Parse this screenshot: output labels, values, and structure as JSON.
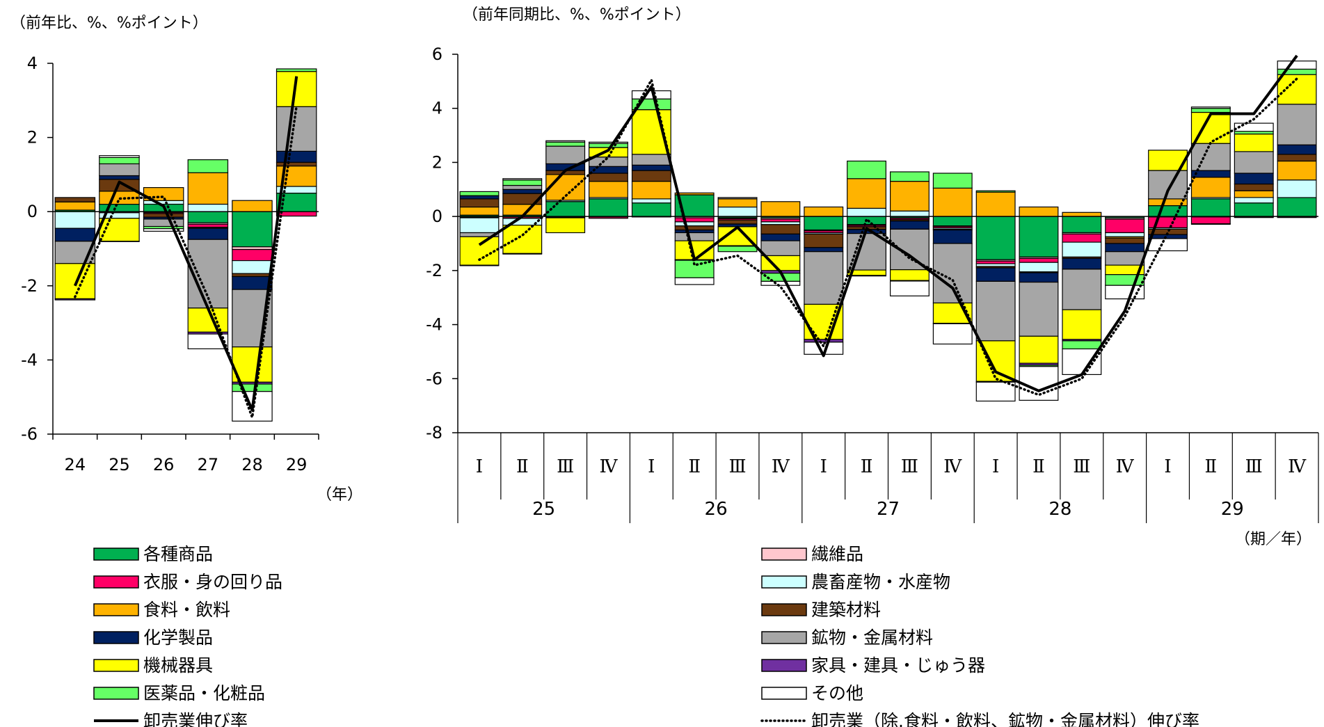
{
  "series_meta": [
    {
      "key": "kakushu",
      "name": "各種商品",
      "color": "#00B050"
    },
    {
      "key": "seni",
      "name": "繊維品",
      "color": "#FFC7CE"
    },
    {
      "key": "ifuku",
      "name": "衣服・身の回り品",
      "color": "#FF0066"
    },
    {
      "key": "nochiku",
      "name": "農畜産物・水産物",
      "color": "#CCFFFF"
    },
    {
      "key": "shokuryo",
      "name": "食料・飲料",
      "color": "#FFB300"
    },
    {
      "key": "kenchiku",
      "name": "建築材料",
      "color": "#6B3A0F"
    },
    {
      "key": "kagaku",
      "name": "化学製品",
      "color": "#002060"
    },
    {
      "key": "kozai",
      "name": "鉱物・金属材料",
      "color": "#A6A6A6"
    },
    {
      "key": "kikai",
      "name": "機械器具",
      "color": "#FFFF00"
    },
    {
      "key": "kagu",
      "name": "家具・建具・じゅう器",
      "color": "#7030A0"
    },
    {
      "key": "iyaku",
      "name": "医薬品・化粧品",
      "color": "#66FF66"
    },
    {
      "key": "sonota",
      "name": "その他",
      "color": "#FFFFFF"
    }
  ],
  "legend": {
    "left": [
      {
        "key": "kakushu",
        "type": "box",
        "label": "各種商品"
      },
      {
        "key": "ifuku",
        "type": "box",
        "label": "衣服・身の回り品"
      },
      {
        "key": "shokuryo",
        "type": "box",
        "label": "食料・飲料"
      },
      {
        "key": "kagaku",
        "type": "box",
        "label": "化学製品"
      },
      {
        "key": "kikai",
        "type": "box",
        "label": "機械器具"
      },
      {
        "key": "iyaku",
        "type": "box",
        "label": "医薬品・化粧品"
      },
      {
        "key": "line_total",
        "type": "solid",
        "label": "卸売業伸び率"
      }
    ],
    "right": [
      {
        "key": "seni",
        "type": "box",
        "label": "繊維品"
      },
      {
        "key": "nochiku",
        "type": "box",
        "label": "農畜産物・水産物"
      },
      {
        "key": "kenchiku",
        "type": "box",
        "label": "建築材料"
      },
      {
        "key": "kozai",
        "type": "box",
        "label": "鉱物・金属材料"
      },
      {
        "key": "kagu",
        "type": "box",
        "label": "家具・建具・じゅう器"
      },
      {
        "key": "sonota",
        "type": "box",
        "label": "その他"
      },
      {
        "key": "line_excl",
        "type": "dotted",
        "label": "卸売業（除.食料・飲料、鉱物・金属材料）伸び率"
      }
    ]
  },
  "chart_data": [
    {
      "type": "bar",
      "stacked": true,
      "title": "",
      "ylabel": "（前年比、%、%ポイント）",
      "xlabel": "（年）",
      "ylim": [
        -6,
        4
      ],
      "yticks": [
        4,
        2,
        0,
        -2,
        -4,
        -6
      ],
      "ytick_labels": [
        "4",
        "2",
        "0",
        "-2",
        "-4",
        "-6"
      ],
      "categories": [
        "24",
        "25",
        "26",
        "27",
        "28",
        "29"
      ],
      "series": [
        {
          "name": "各種商品",
          "values": [
            0.04,
            0.2,
            0.2,
            -0.3,
            -0.95,
            0.5
          ]
        },
        {
          "name": "繊維品",
          "values": [
            0.0,
            0.0,
            -0.02,
            -0.04,
            -0.07,
            0.0
          ]
        },
        {
          "name": "衣服・身の回り品",
          "values": [
            0.0,
            -0.03,
            -0.03,
            -0.08,
            -0.3,
            -0.12
          ]
        },
        {
          "name": "農畜産物・水産物",
          "values": [
            -0.45,
            -0.15,
            0.1,
            0.2,
            -0.35,
            0.18
          ]
        },
        {
          "name": "食料・飲料",
          "values": [
            0.22,
            0.35,
            0.35,
            0.85,
            0.3,
            0.55
          ]
        },
        {
          "name": "建築材料",
          "values": [
            0.12,
            0.32,
            -0.1,
            -0.03,
            -0.08,
            0.1
          ]
        },
        {
          "name": "化学製品",
          "values": [
            -0.35,
            0.1,
            -0.05,
            -0.3,
            -0.35,
            0.3
          ]
        },
        {
          "name": "鉱物・金属材料",
          "values": [
            -0.6,
            0.32,
            -0.2,
            -1.85,
            -1.55,
            1.2
          ]
        },
        {
          "name": "機械器具",
          "values": [
            -0.95,
            -0.62,
            0.0,
            -0.65,
            -0.95,
            0.95
          ]
        },
        {
          "name": "家具・建具・じゅう器",
          "values": [
            -0.03,
            -0.01,
            0.0,
            -0.05,
            -0.05,
            0.0
          ]
        },
        {
          "name": "医薬品・化粧品",
          "values": [
            0.0,
            0.17,
            -0.06,
            0.35,
            -0.2,
            0.07
          ]
        },
        {
          "name": "その他",
          "values": [
            0.0,
            0.05,
            -0.07,
            -0.4,
            -0.8,
            0.0
          ]
        }
      ],
      "lines": [
        {
          "name": "卸売業伸び率",
          "style": "solid",
          "values": [
            -2.0,
            0.8,
            0.15,
            -2.6,
            -5.35,
            3.65
          ]
        },
        {
          "name": "卸売業（除.食料・飲料、鉱物・金属材料）伸び率",
          "style": "dotted",
          "values": [
            -2.3,
            0.35,
            0.4,
            -2.3,
            -5.55,
            2.85
          ]
        }
      ]
    },
    {
      "type": "bar",
      "stacked": true,
      "title": "",
      "ylabel": "（前年同期比、%、%ポイント）",
      "xlabel": "（期／年）",
      "ylim": [
        -8,
        6
      ],
      "yticks": [
        6,
        4,
        2,
        0,
        -2,
        -4,
        -6,
        -8
      ],
      "ytick_labels": [
        "6",
        "4",
        "2",
        "0",
        "-2",
        "-4",
        "-6",
        "-8"
      ],
      "quarters": [
        "Ⅰ",
        "Ⅱ",
        "Ⅲ",
        "Ⅳ",
        "Ⅰ",
        "Ⅱ",
        "Ⅲ",
        "Ⅳ",
        "Ⅰ",
        "Ⅱ",
        "Ⅲ",
        "Ⅳ",
        "Ⅰ",
        "Ⅱ",
        "Ⅲ",
        "Ⅳ",
        "Ⅰ",
        "Ⅱ",
        "Ⅲ",
        "Ⅳ"
      ],
      "years": [
        "25",
        "26",
        "27",
        "28",
        "29"
      ],
      "categories": [
        "25 Ⅰ",
        "25 Ⅱ",
        "25 Ⅲ",
        "25 Ⅳ",
        "26 Ⅰ",
        "26 Ⅱ",
        "26 Ⅲ",
        "26 Ⅳ",
        "27 Ⅰ",
        "27 Ⅱ",
        "27 Ⅲ",
        "27 Ⅳ",
        "28 Ⅰ",
        "28 Ⅱ",
        "28 Ⅲ",
        "28 Ⅳ",
        "29 Ⅰ",
        "29 Ⅱ",
        "29 Ⅲ",
        "29 Ⅳ"
      ],
      "series": [
        {
          "name": "各種商品",
          "values": [
            0.05,
            0.05,
            0.55,
            0.65,
            0.5,
            0.8,
            -0.05,
            -0.05,
            -0.5,
            -0.3,
            -0.05,
            -0.35,
            -1.6,
            -1.5,
            -0.6,
            -0.05,
            0.4,
            0.65,
            0.5,
            0.7
          ]
        },
        {
          "name": "繊維品",
          "values": [
            -0.02,
            -0.02,
            -0.02,
            -0.02,
            0.0,
            -0.05,
            -0.03,
            -0.05,
            -0.03,
            -0.03,
            -0.02,
            -0.02,
            -0.05,
            -0.05,
            -0.05,
            -0.05,
            -0.02,
            -0.02,
            -0.02,
            -0.02
          ]
        },
        {
          "name": "衣服・身の回り品",
          "values": [
            -0.03,
            -0.05,
            -0.03,
            -0.05,
            -0.02,
            -0.15,
            -0.05,
            -0.1,
            -0.07,
            -0.05,
            -0.05,
            -0.05,
            -0.1,
            -0.15,
            -0.3,
            -0.5,
            -0.4,
            -0.25,
            -0.02,
            -0.02
          ]
        },
        {
          "name": "農畜産物・水産物",
          "values": [
            -0.55,
            -0.25,
            0.05,
            0.05,
            0.15,
            -0.15,
            0.35,
            -0.1,
            -0.05,
            0.3,
            0.2,
            -0.05,
            -0.1,
            -0.35,
            -0.55,
            -0.15,
            -0.05,
            0.05,
            0.2,
            0.65
          ]
        },
        {
          "name": "食料・飲料",
          "values": [
            0.3,
            0.4,
            0.95,
            0.6,
            0.65,
            0.07,
            0.3,
            0.55,
            0.35,
            1.1,
            1.1,
            1.05,
            0.9,
            0.35,
            0.15,
            -0.05,
            0.25,
            0.75,
            0.25,
            0.7
          ]
        },
        {
          "name": "建築材料",
          "values": [
            0.3,
            0.4,
            0.15,
            0.3,
            0.4,
            -0.15,
            -0.15,
            -0.35,
            -0.5,
            -0.1,
            -0.05,
            -0.03,
            -0.05,
            -0.03,
            -0.05,
            -0.2,
            -0.2,
            -0.02,
            0.25,
            0.25
          ]
        },
        {
          "name": "化学製品",
          "values": [
            0.12,
            0.15,
            0.25,
            0.25,
            0.2,
            -0.1,
            -0.1,
            -0.25,
            -0.15,
            -0.15,
            -0.3,
            -0.5,
            -0.5,
            -0.35,
            -0.4,
            -0.3,
            -0.15,
            0.25,
            0.4,
            0.35
          ]
        },
        {
          "name": "鉱物・金属材料",
          "values": [
            -0.15,
            0.15,
            0.65,
            0.35,
            0.4,
            -0.3,
            0.05,
            -0.55,
            -1.95,
            -1.35,
            -1.5,
            -2.2,
            -2.2,
            -2.0,
            -1.5,
            -0.5,
            1.05,
            1.0,
            0.8,
            1.5
          ]
        },
        {
          "name": "機械器具",
          "values": [
            -1.05,
            -1.05,
            -0.55,
            0.35,
            1.65,
            -0.7,
            -0.7,
            -0.55,
            -1.3,
            -0.2,
            -0.4,
            -0.75,
            -1.5,
            -1.0,
            -1.1,
            -0.35,
            0.75,
            1.15,
            0.65,
            1.1
          ]
        },
        {
          "name": "家具・建具・じゅう器",
          "values": [
            -0.02,
            -0.02,
            0.0,
            0.0,
            0.0,
            -0.02,
            -0.02,
            -0.1,
            -0.1,
            -0.02,
            -0.02,
            -0.02,
            -0.03,
            -0.07,
            -0.05,
            0.0,
            0.0,
            0.0,
            0.0,
            0.0
          ]
        },
        {
          "name": "医薬品・化粧品",
          "values": [
            0.15,
            0.2,
            0.15,
            0.15,
            0.4,
            -0.65,
            -0.2,
            -0.3,
            0.0,
            0.65,
            0.35,
            0.55,
            0.05,
            -0.05,
            -0.3,
            -0.4,
            0.0,
            0.15,
            0.1,
            0.2
          ]
        },
        {
          "name": "その他",
          "values": [
            0.0,
            0.05,
            0.05,
            0.05,
            0.3,
            -0.25,
            0.0,
            -0.15,
            -0.45,
            0.0,
            -0.55,
            -0.75,
            -0.7,
            -1.25,
            -0.95,
            -0.5,
            -0.45,
            0.05,
            0.3,
            0.3
          ]
        }
      ],
      "lines": [
        {
          "name": "卸売業伸び率",
          "style": "solid",
          "values": [
            -1.05,
            0.0,
            1.7,
            2.45,
            4.8,
            -1.6,
            -0.4,
            -2.05,
            -5.15,
            -0.45,
            -1.45,
            -2.65,
            -5.75,
            -6.45,
            -5.85,
            -3.5,
            0.95,
            3.8,
            3.8,
            5.95
          ]
        },
        {
          "name": "卸売業（除.食料・飲料、鉱物・金属材料）伸び率",
          "style": "dotted",
          "values": [
            -1.6,
            -0.7,
            0.75,
            2.2,
            5.05,
            -1.8,
            -1.45,
            -2.6,
            -4.8,
            -0.1,
            -1.55,
            -2.35,
            -6.0,
            -6.6,
            -6.0,
            -3.7,
            -0.6,
            2.75,
            3.6,
            5.1
          ]
        }
      ]
    }
  ]
}
